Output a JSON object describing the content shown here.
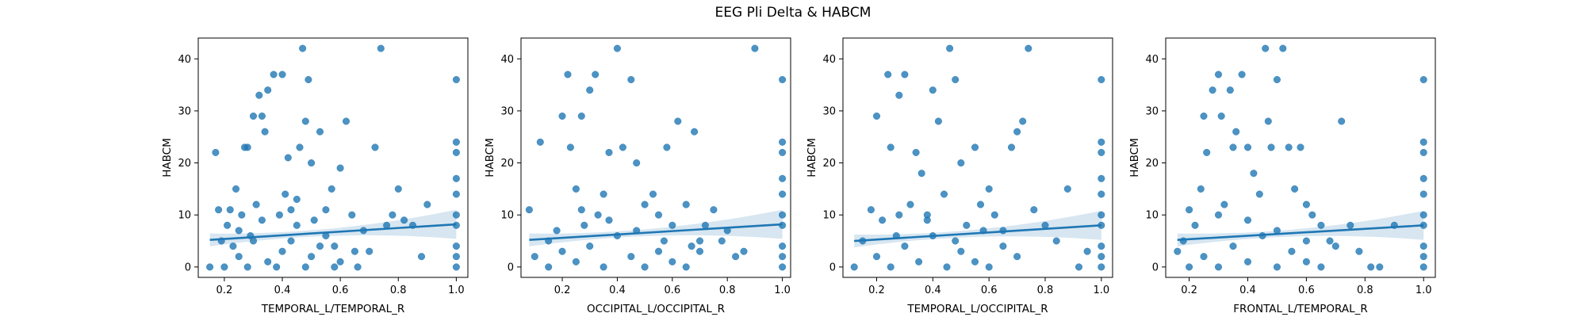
{
  "figure": {
    "title": "EEG Pli Delta & HABCM",
    "colors": {
      "points": "#1f77b4",
      "band": "#1f77b4",
      "line": "#1f77b4"
    }
  },
  "chart_data": [
    {
      "type": "scatter",
      "xlabel": "TEMPORAL_L/TEMPORAL_R",
      "ylabel": "HABCM",
      "xlim": [
        0.11,
        1.04
      ],
      "ylim": [
        -2,
        44
      ],
      "xticks": [
        "0.2",
        "0.4",
        "0.6",
        "0.8",
        "1.0"
      ],
      "yticks": [
        "0",
        "10",
        "20",
        "30",
        "40"
      ],
      "regression": {
        "x": [
          0.15,
          1.0
        ],
        "y": [
          5.2,
          8.2
        ]
      },
      "points": [
        [
          0.15,
          0
        ],
        [
          0.17,
          22
        ],
        [
          0.18,
          11
        ],
        [
          0.19,
          5
        ],
        [
          0.2,
          0
        ],
        [
          0.21,
          8
        ],
        [
          0.22,
          11
        ],
        [
          0.23,
          4
        ],
        [
          0.24,
          15
        ],
        [
          0.25,
          7
        ],
        [
          0.26,
          10
        ],
        [
          0.27,
          23
        ],
        [
          0.28,
          23
        ],
        [
          0.29,
          6
        ],
        [
          0.3,
          29
        ],
        [
          0.31,
          12
        ],
        [
          0.32,
          33
        ],
        [
          0.33,
          29
        ],
        [
          0.34,
          26
        ],
        [
          0.35,
          34
        ],
        [
          0.37,
          37
        ],
        [
          0.39,
          10
        ],
        [
          0.4,
          37
        ],
        [
          0.41,
          14
        ],
        [
          0.42,
          21
        ],
        [
          0.43,
          5
        ],
        [
          0.45,
          13
        ],
        [
          0.46,
          23
        ],
        [
          0.47,
          42
        ],
        [
          0.48,
          28
        ],
        [
          0.49,
          36
        ],
        [
          0.5,
          20
        ],
        [
          0.51,
          9
        ],
        [
          0.53,
          26
        ],
        [
          0.55,
          11
        ],
        [
          0.57,
          15
        ],
        [
          0.58,
          4
        ],
        [
          0.6,
          19
        ],
        [
          0.62,
          28
        ],
        [
          0.64,
          10
        ],
        [
          0.66,
          0
        ],
        [
          0.68,
          7
        ],
        [
          0.7,
          3
        ],
        [
          0.72,
          23
        ],
        [
          0.74,
          42
        ],
        [
          0.76,
          8
        ],
        [
          0.78,
          10
        ],
        [
          0.8,
          15
        ],
        [
          0.82,
          9
        ],
        [
          0.85,
          8
        ],
        [
          0.88,
          2
        ],
        [
          0.9,
          12
        ],
        [
          1.0,
          36
        ],
        [
          1.0,
          24
        ],
        [
          1.0,
          22
        ],
        [
          1.0,
          17
        ],
        [
          1.0,
          14
        ],
        [
          1.0,
          10
        ],
        [
          1.0,
          8
        ],
        [
          1.0,
          4
        ],
        [
          1.0,
          2
        ],
        [
          1.0,
          0
        ],
        [
          0.25,
          2
        ],
        [
          0.3,
          5
        ],
        [
          0.35,
          1
        ],
        [
          0.4,
          3
        ],
        [
          0.45,
          8
        ],
        [
          0.5,
          2
        ],
        [
          0.55,
          6
        ],
        [
          0.6,
          1
        ],
        [
          0.65,
          3
        ],
        [
          0.28,
          0
        ],
        [
          0.38,
          0
        ],
        [
          0.48,
          0
        ],
        [
          0.58,
          0
        ],
        [
          0.33,
          9
        ],
        [
          0.43,
          11
        ],
        [
          0.53,
          4
        ]
      ]
    },
    {
      "type": "scatter",
      "xlabel": "OCCIPITAL_L/OCCIPITAL_R",
      "ylabel": "HABCM",
      "xlim": [
        0.05,
        1.03
      ],
      "ylim": [
        -2,
        44
      ],
      "xticks": [
        "0.2",
        "0.4",
        "0.6",
        "0.8",
        "1.0"
      ],
      "yticks": [
        "0",
        "10",
        "20",
        "30",
        "40"
      ],
      "regression": {
        "x": [
          0.08,
          1.0
        ],
        "y": [
          5.2,
          8.2
        ]
      },
      "points": [
        [
          0.08,
          11
        ],
        [
          0.1,
          2
        ],
        [
          0.12,
          24
        ],
        [
          0.15,
          5
        ],
        [
          0.18,
          7
        ],
        [
          0.2,
          29
        ],
        [
          0.22,
          37
        ],
        [
          0.23,
          23
        ],
        [
          0.25,
          15
        ],
        [
          0.27,
          29
        ],
        [
          0.28,
          8
        ],
        [
          0.3,
          34
        ],
        [
          0.32,
          37
        ],
        [
          0.33,
          10
        ],
        [
          0.35,
          14
        ],
        [
          0.37,
          22
        ],
        [
          0.4,
          42
        ],
        [
          0.42,
          23
        ],
        [
          0.45,
          36
        ],
        [
          0.47,
          20
        ],
        [
          0.5,
          12
        ],
        [
          0.53,
          14
        ],
        [
          0.55,
          10
        ],
        [
          0.58,
          23
        ],
        [
          0.6,
          8
        ],
        [
          0.62,
          28
        ],
        [
          0.65,
          12
        ],
        [
          0.68,
          26
        ],
        [
          0.7,
          3
        ],
        [
          0.72,
          8
        ],
        [
          0.75,
          11
        ],
        [
          0.78,
          5
        ],
        [
          0.8,
          7
        ],
        [
          0.83,
          2
        ],
        [
          0.86,
          3
        ],
        [
          0.9,
          42
        ],
        [
          1.0,
          36
        ],
        [
          1.0,
          24
        ],
        [
          1.0,
          22
        ],
        [
          1.0,
          17
        ],
        [
          1.0,
          14
        ],
        [
          1.0,
          10
        ],
        [
          1.0,
          8
        ],
        [
          1.0,
          4
        ],
        [
          1.0,
          2
        ],
        [
          1.0,
          0
        ],
        [
          0.15,
          0
        ],
        [
          0.2,
          3
        ],
        [
          0.25,
          1
        ],
        [
          0.3,
          4
        ],
        [
          0.35,
          0
        ],
        [
          0.4,
          6
        ],
        [
          0.45,
          2
        ],
        [
          0.5,
          0
        ],
        [
          0.55,
          3
        ],
        [
          0.6,
          1
        ],
        [
          0.65,
          0
        ],
        [
          0.7,
          5
        ],
        [
          0.27,
          11
        ],
        [
          0.37,
          9
        ],
        [
          0.47,
          7
        ],
        [
          0.57,
          5
        ],
        [
          0.67,
          4
        ]
      ]
    },
    {
      "type": "scatter",
      "xlabel": "TEMPORAL_L/OCCIPITAL_R",
      "ylabel": "HABCM",
      "xlim": [
        0.08,
        1.04
      ],
      "ylim": [
        -2,
        44
      ],
      "xticks": [
        "0.2",
        "0.4",
        "0.6",
        "0.8",
        "1.0"
      ],
      "yticks": [
        "0",
        "10",
        "20",
        "30",
        "40"
      ],
      "regression": {
        "x": [
          0.12,
          1.0
        ],
        "y": [
          5.0,
          8.0
        ]
      },
      "points": [
        [
          0.12,
          0
        ],
        [
          0.15,
          5
        ],
        [
          0.18,
          11
        ],
        [
          0.2,
          29
        ],
        [
          0.22,
          9
        ],
        [
          0.24,
          37
        ],
        [
          0.25,
          23
        ],
        [
          0.27,
          6
        ],
        [
          0.28,
          33
        ],
        [
          0.3,
          37
        ],
        [
          0.32,
          12
        ],
        [
          0.34,
          22
        ],
        [
          0.36,
          18
        ],
        [
          0.38,
          10
        ],
        [
          0.4,
          34
        ],
        [
          0.42,
          28
        ],
        [
          0.44,
          14
        ],
        [
          0.46,
          42
        ],
        [
          0.48,
          36
        ],
        [
          0.5,
          20
        ],
        [
          0.52,
          8
        ],
        [
          0.55,
          23
        ],
        [
          0.57,
          12
        ],
        [
          0.6,
          15
        ],
        [
          0.62,
          10
        ],
        [
          0.65,
          7
        ],
        [
          0.68,
          23
        ],
        [
          0.7,
          26
        ],
        [
          0.72,
          28
        ],
        [
          0.74,
          42
        ],
        [
          0.76,
          11
        ],
        [
          0.8,
          8
        ],
        [
          0.84,
          5
        ],
        [
          0.88,
          15
        ],
        [
          0.92,
          0
        ],
        [
          0.95,
          3
        ],
        [
          1.0,
          36
        ],
        [
          1.0,
          24
        ],
        [
          1.0,
          22
        ],
        [
          1.0,
          17
        ],
        [
          1.0,
          14
        ],
        [
          1.0,
          10
        ],
        [
          1.0,
          8
        ],
        [
          1.0,
          4
        ],
        [
          1.0,
          2
        ],
        [
          1.0,
          0
        ],
        [
          0.2,
          2
        ],
        [
          0.25,
          0
        ],
        [
          0.3,
          4
        ],
        [
          0.35,
          1
        ],
        [
          0.4,
          6
        ],
        [
          0.45,
          0
        ],
        [
          0.5,
          3
        ],
        [
          0.55,
          1
        ],
        [
          0.6,
          0
        ],
        [
          0.65,
          4
        ],
        [
          0.7,
          2
        ],
        [
          0.28,
          10
        ],
        [
          0.38,
          9
        ],
        [
          0.48,
          5
        ],
        [
          0.58,
          7
        ]
      ]
    },
    {
      "type": "scatter",
      "xlabel": "FRONTAL_L/TEMPORAL_R",
      "ylabel": "HABCM",
      "xlim": [
        0.12,
        1.04
      ],
      "ylim": [
        -2,
        44
      ],
      "xticks": [
        "0.2",
        "0.4",
        "0.6",
        "0.8",
        "1.0"
      ],
      "yticks": [
        "0",
        "10",
        "20",
        "30",
        "40"
      ],
      "regression": {
        "x": [
          0.16,
          1.0
        ],
        "y": [
          5.2,
          8.0
        ]
      },
      "points": [
        [
          0.16,
          3
        ],
        [
          0.18,
          5
        ],
        [
          0.2,
          11
        ],
        [
          0.22,
          8
        ],
        [
          0.24,
          15
        ],
        [
          0.25,
          29
        ],
        [
          0.26,
          22
        ],
        [
          0.28,
          34
        ],
        [
          0.3,
          37
        ],
        [
          0.31,
          29
        ],
        [
          0.32,
          12
        ],
        [
          0.34,
          34
        ],
        [
          0.35,
          23
        ],
        [
          0.36,
          26
        ],
        [
          0.38,
          37
        ],
        [
          0.4,
          23
        ],
        [
          0.42,
          18
        ],
        [
          0.44,
          14
        ],
        [
          0.46,
          42
        ],
        [
          0.47,
          28
        ],
        [
          0.48,
          23
        ],
        [
          0.5,
          36
        ],
        [
          0.52,
          42
        ],
        [
          0.54,
          23
        ],
        [
          0.56,
          15
        ],
        [
          0.58,
          23
        ],
        [
          0.6,
          12
        ],
        [
          0.62,
          10
        ],
        [
          0.65,
          8
        ],
        [
          0.68,
          5
        ],
        [
          0.72,
          28
        ],
        [
          0.75,
          8
        ],
        [
          0.78,
          3
        ],
        [
          0.82,
          0
        ],
        [
          0.85,
          0
        ],
        [
          0.9,
          8
        ],
        [
          1.0,
          36
        ],
        [
          1.0,
          24
        ],
        [
          1.0,
          22
        ],
        [
          1.0,
          17
        ],
        [
          1.0,
          14
        ],
        [
          1.0,
          10
        ],
        [
          1.0,
          8
        ],
        [
          1.0,
          4
        ],
        [
          1.0,
          2
        ],
        [
          1.0,
          0
        ],
        [
          0.2,
          0
        ],
        [
          0.25,
          2
        ],
        [
          0.3,
          0
        ],
        [
          0.35,
          4
        ],
        [
          0.4,
          1
        ],
        [
          0.45,
          6
        ],
        [
          0.5,
          0
        ],
        [
          0.55,
          3
        ],
        [
          0.6,
          1
        ],
        [
          0.65,
          0
        ],
        [
          0.7,
          4
        ],
        [
          0.3,
          10
        ],
        [
          0.4,
          9
        ],
        [
          0.5,
          7
        ],
        [
          0.6,
          5
        ]
      ]
    }
  ]
}
